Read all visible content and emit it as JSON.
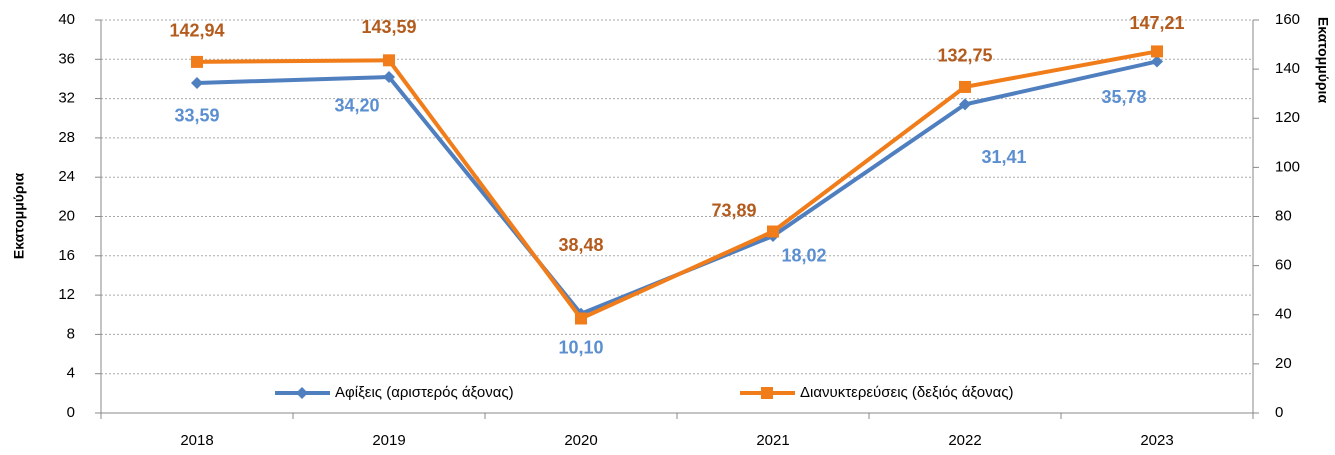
{
  "chart_data": {
    "type": "line",
    "categories": [
      "2018",
      "2019",
      "2020",
      "2021",
      "2022",
      "2023"
    ],
    "ylabel": "Εκατομμύρια",
    "y2label": "Εκατομμύρια",
    "ylim": [
      0,
      40
    ],
    "yticks": [
      0,
      4,
      8,
      12,
      16,
      20,
      24,
      28,
      32,
      36,
      40
    ],
    "y2lim": [
      0,
      160
    ],
    "y2ticks": [
      0,
      20,
      40,
      60,
      80,
      100,
      120,
      140,
      160
    ],
    "grid": true,
    "legend": "bottom",
    "series": [
      {
        "name": "Αφίξεις (αριστερός άξονας)",
        "color": "#4f7fbf",
        "label_color": "#5b8fd0",
        "marker": "diamond",
        "values": [
          33.59,
          34.2,
          10.1,
          18.02,
          31.41,
          35.78
        ],
        "value_labels": [
          "33,59",
          "34,20",
          "10,10",
          "18,02",
          "31,41",
          "35,78"
        ]
      },
      {
        "name": "Διανυκτερεύσεις (δεξιός άξονας)",
        "color": "#f07d1a",
        "label_color": "#b35c1e",
        "marker": "square",
        "axis": "y2",
        "values": [
          142.94,
          143.59,
          38.48,
          73.89,
          132.75,
          147.21
        ],
        "value_labels": [
          "142,94",
          "143,59",
          "38,48",
          "73,89",
          "132,75",
          "147,21"
        ]
      }
    ]
  }
}
